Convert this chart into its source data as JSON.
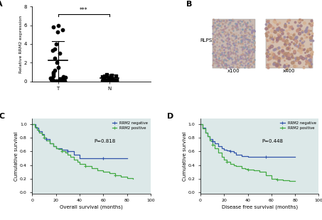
{
  "panel_A": {
    "label": "A",
    "T_points": [
      0.05,
      0.08,
      0.1,
      0.12,
      0.15,
      0.18,
      0.2,
      0.22,
      0.25,
      0.3,
      0.35,
      0.4,
      0.5,
      0.6,
      0.8,
      1.0,
      1.2,
      1.5,
      2.0,
      2.5,
      3.0,
      3.3,
      3.5,
      4.0,
      5.3,
      5.5,
      5.8,
      6.0
    ],
    "N_points": [
      0.02,
      0.03,
      0.05,
      0.06,
      0.07,
      0.08,
      0.1,
      0.12,
      0.15,
      0.18,
      0.25,
      0.3,
      0.35,
      0.4,
      0.5,
      0.55,
      0.6,
      0.65,
      0.7
    ],
    "T_mean": 2.25,
    "T_sd_low": 0.18,
    "T_sd_high": 4.32,
    "N_mean": 0.38,
    "N_sd_low": 0.04,
    "N_sd_high": 0.72,
    "ylabel": "Relative RRM2 expression",
    "T_label": "T",
    "N_label": "N",
    "ylim": [
      0,
      8
    ],
    "yticks": [
      0,
      2,
      4,
      6,
      8
    ],
    "significance": "***",
    "sig_y": 7.2
  },
  "panel_B": {
    "label": "B",
    "text_label": "RLPS",
    "x100_label": "x100",
    "x400_label": "x400"
  },
  "panel_C": {
    "label": "C",
    "xlabel": "Overall survival (months)",
    "ylabel": "Cumulative survival",
    "pvalue": "P=0.818",
    "xlim": [
      0,
      100
    ],
    "ylim": [
      0.0,
      1.0
    ],
    "xticks": [
      0,
      20,
      40,
      60,
      80,
      100
    ],
    "yticks": [
      0.0,
      0.2,
      0.4,
      0.6,
      0.8,
      1.0
    ],
    "negative_x": [
      0,
      3,
      5,
      8,
      10,
      12,
      15,
      18,
      20,
      25,
      28,
      30,
      35,
      40,
      50,
      60,
      65,
      80
    ],
    "negative_y": [
      1.0,
      0.95,
      0.9,
      0.85,
      0.8,
      0.78,
      0.72,
      0.68,
      0.65,
      0.63,
      0.62,
      0.6,
      0.55,
      0.5,
      0.5,
      0.5,
      0.5,
      0.5
    ],
    "positive_x": [
      0,
      2,
      4,
      6,
      8,
      10,
      12,
      15,
      18,
      20,
      22,
      25,
      28,
      30,
      32,
      35,
      38,
      40,
      45,
      50,
      55,
      60,
      65,
      70,
      75,
      80,
      85
    ],
    "positive_y": [
      1.0,
      0.96,
      0.92,
      0.88,
      0.84,
      0.8,
      0.76,
      0.72,
      0.68,
      0.65,
      0.64,
      0.6,
      0.58,
      0.55,
      0.52,
      0.48,
      0.45,
      0.42,
      0.38,
      0.35,
      0.32,
      0.3,
      0.28,
      0.25,
      0.23,
      0.21,
      0.2
    ],
    "negative_color": "#3355aa",
    "positive_color": "#44aa44"
  },
  "panel_D": {
    "label": "D",
    "xlabel": "Disease free survival (months)",
    "ylabel": "Cumulative survival",
    "pvalue": "P=0.448",
    "xlim": [
      0,
      100
    ],
    "ylim": [
      0.0,
      1.0
    ],
    "xticks": [
      0,
      20,
      40,
      60,
      80,
      100
    ],
    "yticks": [
      0.0,
      0.2,
      0.4,
      0.6,
      0.8,
      1.0
    ],
    "negative_x": [
      0,
      2,
      4,
      6,
      8,
      10,
      12,
      15,
      18,
      20,
      22,
      25,
      28,
      30,
      35,
      40,
      50,
      60,
      70,
      80
    ],
    "negative_y": [
      1.0,
      0.95,
      0.88,
      0.82,
      0.78,
      0.75,
      0.72,
      0.68,
      0.65,
      0.62,
      0.61,
      0.6,
      0.58,
      0.55,
      0.53,
      0.52,
      0.52,
      0.52,
      0.52,
      0.52
    ],
    "positive_x": [
      0,
      2,
      4,
      6,
      8,
      10,
      12,
      15,
      18,
      20,
      22,
      25,
      28,
      30,
      35,
      38,
      40,
      45,
      50,
      55,
      60,
      65,
      70,
      75,
      80
    ],
    "positive_y": [
      1.0,
      0.94,
      0.88,
      0.82,
      0.76,
      0.7,
      0.65,
      0.58,
      0.52,
      0.48,
      0.45,
      0.42,
      0.4,
      0.38,
      0.35,
      0.34,
      0.33,
      0.32,
      0.3,
      0.25,
      0.2,
      0.19,
      0.18,
      0.17,
      0.17
    ],
    "negative_color": "#3355aa",
    "positive_color": "#44aa44"
  },
  "plot_bg": "#dce8e8",
  "fig_bg": "#ffffff"
}
